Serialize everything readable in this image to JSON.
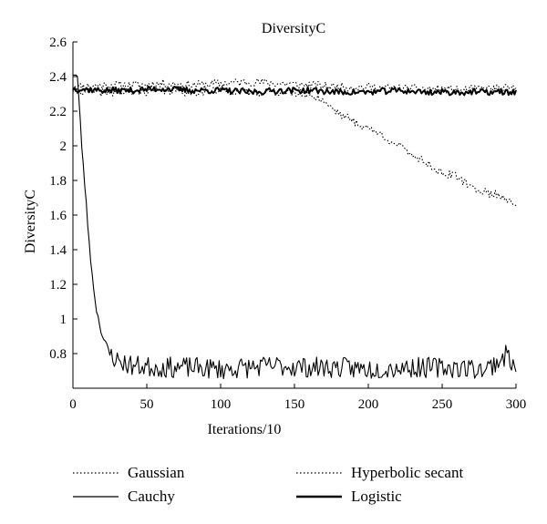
{
  "chart_data": {
    "type": "line",
    "title": "DiversityC",
    "xlabel": "Iterations/10",
    "ylabel": "DiversityC",
    "xlim": [
      0,
      300
    ],
    "ylim": [
      0.6,
      2.6
    ],
    "x_ticks": [
      "0",
      "50",
      "100",
      "150",
      "200",
      "250",
      "300"
    ],
    "y_ticks": [
      "0.8",
      "1",
      "1.2",
      "1.4",
      "1.6",
      "1.8",
      "2",
      "2.2",
      "2.4",
      "2.6"
    ],
    "series": [
      {
        "name": "Gaussian",
        "style": "dotted",
        "x": [
          0,
          20,
          40,
          60,
          80,
          100,
          120,
          140,
          160,
          180,
          200,
          220,
          240,
          260,
          280,
          300
        ],
        "y": [
          2.34,
          2.35,
          2.35,
          2.36,
          2.35,
          2.36,
          2.37,
          2.36,
          2.35,
          2.34,
          2.34,
          2.33,
          2.33,
          2.32,
          2.33,
          2.33
        ]
      },
      {
        "name": "Cauchy",
        "style": "solid-thin",
        "x": [
          0,
          3,
          6,
          10,
          13,
          16,
          20,
          25,
          30,
          40,
          60,
          80,
          100,
          120,
          140,
          160,
          180,
          200,
          220,
          240,
          260,
          280,
          295,
          300
        ],
        "y": [
          2.42,
          2.4,
          2.0,
          1.55,
          1.25,
          1.05,
          0.9,
          0.8,
          0.76,
          0.73,
          0.72,
          0.72,
          0.71,
          0.72,
          0.73,
          0.72,
          0.72,
          0.71,
          0.72,
          0.72,
          0.72,
          0.71,
          0.8,
          0.68
        ]
      },
      {
        "name": "Hyperbolic secant",
        "style": "dotted",
        "x": [
          0,
          20,
          40,
          60,
          80,
          100,
          120,
          140,
          160,
          170,
          180,
          190,
          200,
          210,
          220,
          230,
          240,
          250,
          260,
          270,
          280,
          290,
          300
        ],
        "y": [
          2.32,
          2.31,
          2.31,
          2.32,
          2.31,
          2.32,
          2.31,
          2.31,
          2.3,
          2.26,
          2.19,
          2.14,
          2.1,
          2.06,
          2.0,
          1.95,
          1.9,
          1.84,
          1.82,
          1.76,
          1.73,
          1.71,
          1.67
        ]
      },
      {
        "name": "Logistic",
        "style": "solid-thick",
        "x": [
          0,
          20,
          40,
          60,
          80,
          100,
          120,
          140,
          160,
          180,
          200,
          220,
          240,
          260,
          280,
          300
        ],
        "y": [
          2.33,
          2.32,
          2.32,
          2.33,
          2.32,
          2.32,
          2.31,
          2.32,
          2.32,
          2.31,
          2.31,
          2.32,
          2.31,
          2.31,
          2.31,
          2.31
        ]
      }
    ],
    "legend_position": "bottom",
    "grid": false
  }
}
